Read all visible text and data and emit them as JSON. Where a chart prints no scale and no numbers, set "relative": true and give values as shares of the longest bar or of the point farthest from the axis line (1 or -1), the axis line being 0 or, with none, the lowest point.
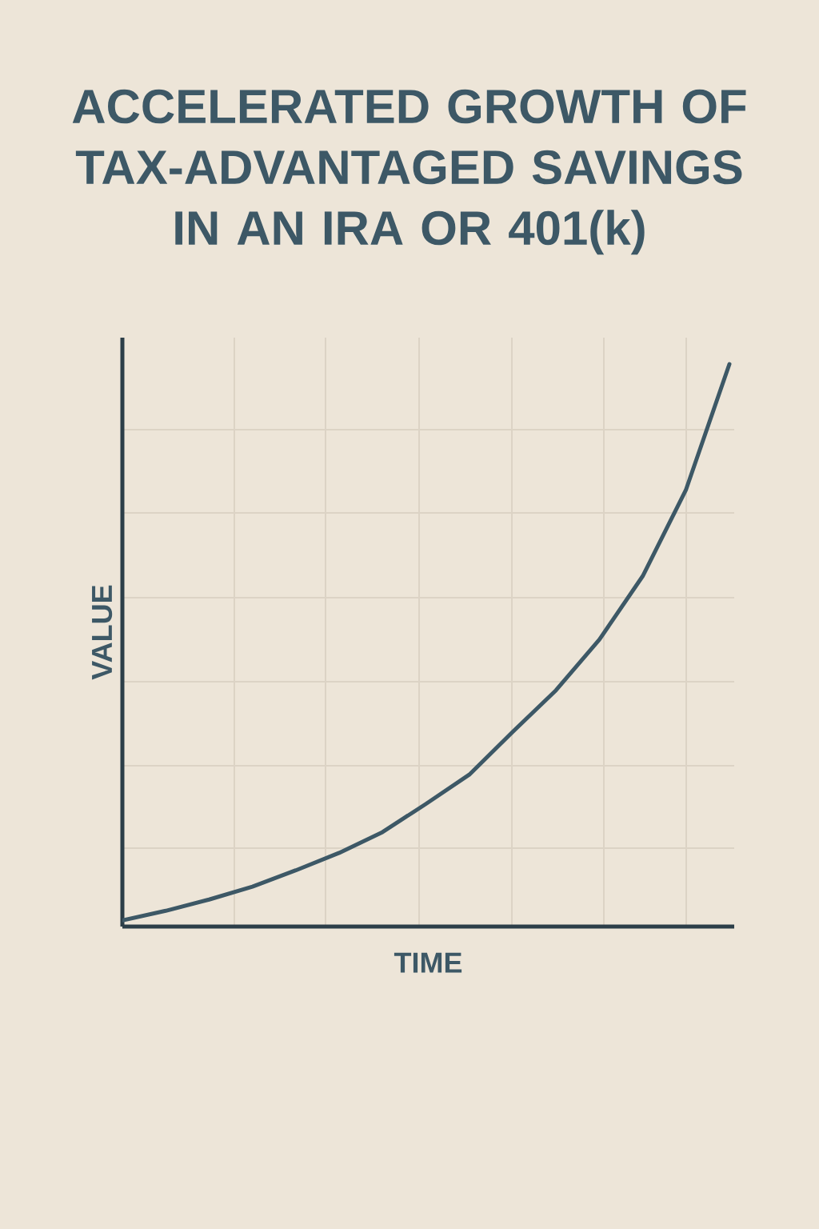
{
  "chart_data": {
    "type": "line",
    "title": "ACCELERATED GROWTH OF TAX-ADVANTAGED SAVINGS IN AN IRA OR 401(k)",
    "xlabel": "TIME",
    "ylabel": "VALUE",
    "relative": true,
    "grid": true,
    "color": "#3d5866",
    "categories": [
      null,
      null,
      null,
      null,
      null,
      null,
      null,
      null,
      null,
      null,
      null,
      null,
      null,
      null,
      null
    ],
    "values": [
      0.011,
      0.028,
      0.048,
      0.071,
      0.1,
      0.131,
      0.168,
      0.218,
      0.27,
      0.346,
      0.42,
      0.51,
      0.623,
      0.777,
      1
    ]
  }
}
